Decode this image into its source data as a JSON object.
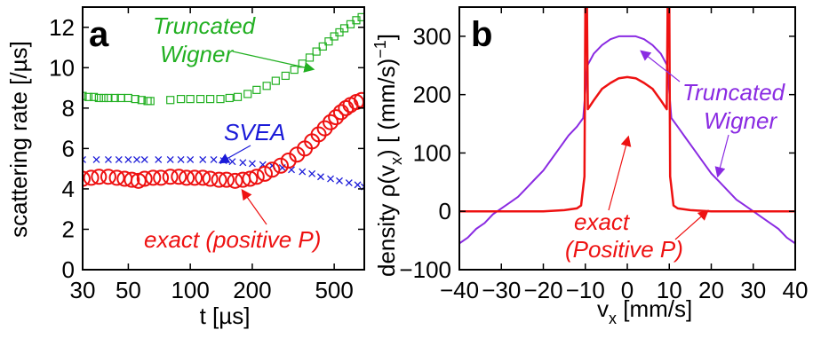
{
  "chart_data": [
    {
      "panel": "a",
      "type": "scatter",
      "x_scale": "log",
      "xlim": [
        30,
        700
      ],
      "ylim": [
        0,
        13
      ],
      "xlabel": "t [µs]",
      "ylabel": "scattering rate [/µs]",
      "xticks": [
        30,
        50,
        100,
        200,
        500
      ],
      "yticks": [
        0,
        2,
        4,
        6,
        8,
        10,
        12
      ],
      "series": [
        {
          "name": "Truncated Wigner",
          "color": "#22b022",
          "marker": "square",
          "x": [
            30,
            32,
            34,
            36,
            38,
            40,
            43,
            46,
            50,
            54,
            58,
            62,
            64,
            80,
            90,
            100,
            112,
            125,
            140,
            155,
            170,
            190,
            210,
            235,
            260,
            290,
            320,
            350,
            380,
            410,
            440,
            470,
            500,
            530,
            560,
            600,
            640,
            680
          ],
          "y": [
            8.6,
            8.55,
            8.55,
            8.5,
            8.5,
            8.5,
            8.5,
            8.5,
            8.5,
            8.45,
            8.4,
            8.35,
            8.35,
            8.4,
            8.45,
            8.45,
            8.45,
            8.45,
            8.45,
            8.5,
            8.55,
            8.7,
            8.9,
            9.1,
            9.35,
            9.6,
            9.9,
            10.2,
            10.5,
            10.8,
            11.05,
            11.3,
            11.55,
            11.75,
            11.95,
            12.15,
            12.35,
            12.5
          ]
        },
        {
          "name": "SVEA",
          "color": "#1a1ad8",
          "marker": "x",
          "x": [
            30,
            35,
            40,
            45,
            50,
            55,
            60,
            70,
            80,
            90,
            100,
            115,
            130,
            145,
            160,
            180,
            200,
            225,
            250,
            280,
            310,
            350,
            390,
            430,
            480,
            530,
            590,
            650,
            700
          ],
          "y": [
            5.45,
            5.45,
            5.45,
            5.45,
            5.45,
            5.45,
            5.45,
            5.45,
            5.45,
            5.45,
            5.45,
            5.45,
            5.45,
            5.4,
            5.35,
            5.3,
            5.25,
            5.2,
            5.15,
            5.05,
            4.95,
            4.85,
            4.75,
            4.6,
            4.5,
            4.4,
            4.3,
            4.2,
            4.1
          ]
        },
        {
          "name": "exact (positive P)",
          "color": "#ee1111",
          "marker": "circle",
          "x": [
            30,
            33,
            36,
            40,
            44,
            48,
            52,
            56,
            60,
            66,
            72,
            80,
            88,
            96,
            105,
            115,
            125,
            138,
            150,
            165,
            180,
            195,
            210,
            230,
            250,
            275,
            300,
            330,
            360,
            390,
            420,
            450,
            480,
            510,
            540,
            570,
            600,
            640,
            680
          ],
          "y": [
            4.5,
            4.55,
            4.6,
            4.6,
            4.55,
            4.5,
            4.45,
            4.4,
            4.5,
            4.55,
            4.55,
            4.6,
            4.6,
            4.55,
            4.55,
            4.55,
            4.5,
            4.45,
            4.45,
            4.4,
            4.45,
            4.5,
            4.6,
            4.75,
            4.95,
            5.15,
            5.4,
            5.7,
            6.0,
            6.35,
            6.7,
            7.0,
            7.3,
            7.55,
            7.8,
            8.0,
            8.15,
            8.3,
            8.4
          ]
        }
      ],
      "annotations": [
        "Truncated Wigner",
        "SVEA",
        "exact (positive P)"
      ]
    },
    {
      "panel": "b",
      "type": "line",
      "xlim": [
        -40,
        40
      ],
      "ylim": [
        -100,
        350
      ],
      "xlabel": "v_x [mm/s]",
      "ylabel": "density ρ(v_x) [(mm/s)^-1]",
      "xticks": [
        -40,
        -30,
        -20,
        -10,
        0,
        10,
        20,
        30,
        40
      ],
      "yticks": [
        -100,
        0,
        100,
        200,
        300
      ],
      "series": [
        {
          "name": "Truncated Wigner",
          "color": "#8a2be2",
          "x": [
            -40,
            -38,
            -36,
            -34,
            -32,
            -30,
            -28,
            -26,
            -24,
            -22,
            -20,
            -18,
            -16,
            -14,
            -12,
            -10.5,
            -9.5,
            -8,
            -6,
            -4,
            -2,
            0,
            2,
            4,
            6,
            8,
            9.5,
            10.5,
            12,
            14,
            16,
            18,
            20,
            22,
            24,
            26,
            28,
            30,
            32,
            34,
            36,
            38,
            40
          ],
          "y": [
            -55,
            -45,
            -30,
            -20,
            -5,
            5,
            15,
            25,
            40,
            55,
            70,
            90,
            110,
            130,
            145,
            160,
            250,
            270,
            285,
            295,
            300,
            300,
            300,
            295,
            285,
            270,
            250,
            160,
            145,
            125,
            105,
            85,
            65,
            50,
            35,
            20,
            10,
            0,
            -10,
            -20,
            -30,
            -45,
            -55
          ]
        },
        {
          "name": "exact (Positive P)",
          "color": "#ee1111",
          "x": [
            -40,
            -35,
            -30,
            -25,
            -20,
            -15,
            -12,
            -11,
            -10.2,
            -10,
            -9.6,
            -9.4,
            -8,
            -6,
            -4,
            -2,
            0,
            2,
            4,
            6,
            8,
            9.4,
            9.6,
            10,
            10.2,
            11,
            12,
            15,
            20,
            25,
            30,
            35,
            40
          ],
          "y": [
            0,
            0,
            0,
            0,
            0,
            2,
            5,
            10,
            60,
            350,
            350,
            175,
            190,
            210,
            220,
            228,
            230,
            228,
            220,
            210,
            190,
            175,
            350,
            350,
            60,
            10,
            5,
            2,
            0,
            0,
            0,
            0,
            0
          ]
        }
      ],
      "annotations": [
        "Truncated Wigner",
        "exact (Positive P)"
      ]
    }
  ],
  "labels": {
    "panel_a": "a",
    "panel_b": "b",
    "a_xlabel": "t [µs]",
    "a_ylabel": "scattering rate [/µs]",
    "b_xlabel_main": "v",
    "b_xlabel_sub": "x",
    "b_xlabel_rest": " [mm/s]",
    "b_ylabel": "density ρ(v",
    "b_ylabel_sub": "x",
    "b_ylabel_rest": ") [ (mm/s)",
    "b_ylabel_sup": "−1",
    "b_ylabel_end": "]",
    "annot_tw_1": "Truncated",
    "annot_tw_2": "Wigner",
    "annot_svea": "SVEA",
    "annot_exact_a": "exact (positive P)",
    "annot_b_tw_1": "Truncated",
    "annot_b_tw_2": "Wigner",
    "annot_b_exact_1": "exact",
    "annot_b_exact_2": "(Positive P)",
    "a_xtick_labels": [
      "30",
      "50",
      "100",
      "200",
      "500"
    ],
    "a_ytick_labels": [
      "0",
      "2",
      "4",
      "6",
      "8",
      "10",
      "12"
    ],
    "b_xtick_labels": [
      "−40",
      "−30",
      "−20",
      "−10",
      "0",
      "10",
      "20",
      "30",
      "40"
    ],
    "b_ytick_labels": [
      "−100",
      "0",
      "100",
      "200",
      "300"
    ]
  }
}
